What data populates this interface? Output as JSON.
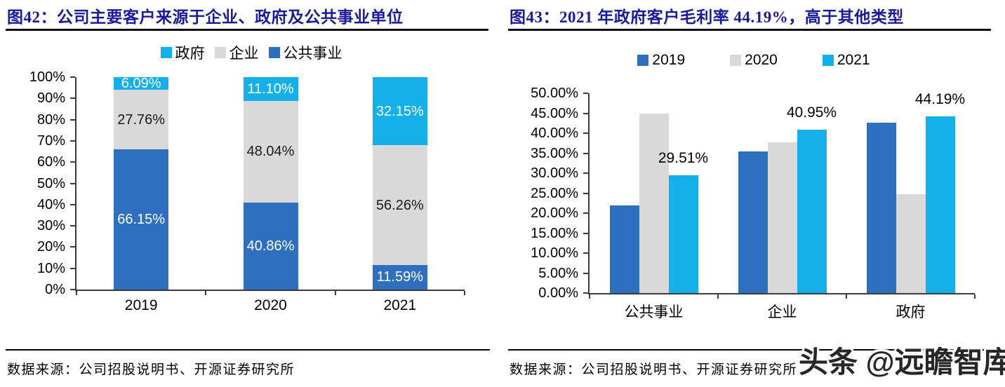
{
  "watermark": {
    "text": "头条 @远瞻智库"
  },
  "panels": [
    {
      "title": "图42：公司主要客户来源于企业、政府及公共事业单位",
      "source": "数据来源：公司招股说明书、开源证券研究所"
    },
    {
      "title": "图43：2021 年政府客户毛利率 44.19%，高于其他类型",
      "source": "数据来源：公司招股说明书、开源证券研究所"
    }
  ],
  "colors": {
    "blue": "#2e6fbf",
    "gray": "#d9d9d9",
    "cyan": "#13b0ea",
    "title_navy": "#1a1a9c"
  },
  "chart_data": [
    {
      "type": "bar",
      "stacked": true,
      "title": "图42：公司主要客户来源于企业、政府及公共事业单位",
      "categories": [
        "2019",
        "2020",
        "2021"
      ],
      "series": [
        {
          "name": "公共事业",
          "color": "#2e6fbf",
          "label_color": "#ffffff",
          "values": [
            66.15,
            40.86,
            11.59
          ],
          "labels": [
            "66.15%",
            "40.86%",
            "11.59%"
          ]
        },
        {
          "name": "企业",
          "color": "#d9d9d9",
          "label_color": "#1a1a1a",
          "values": [
            27.76,
            48.04,
            56.26
          ],
          "labels": [
            "27.76%",
            "48.04%",
            "56.26%"
          ]
        },
        {
          "name": "政府",
          "color": "#13b0ea",
          "label_color": "#ffffff",
          "values": [
            6.09,
            11.1,
            32.15
          ],
          "labels": [
            "6.09%",
            "11.10%",
            "32.15%"
          ]
        }
      ],
      "legend": [
        {
          "label": "政府",
          "color": "#13b0ea"
        },
        {
          "label": "企业",
          "color": "#d9d9d9"
        },
        {
          "label": "公共事业",
          "color": "#2e6fbf"
        }
      ],
      "legend_position": "top",
      "grid": false,
      "ylim": [
        0,
        100
      ],
      "yticks": [
        "0%",
        "10%",
        "20%",
        "30%",
        "40%",
        "50%",
        "60%",
        "70%",
        "80%",
        "90%",
        "100%"
      ]
    },
    {
      "type": "bar",
      "stacked": false,
      "title": "图43：2021 年政府客户毛利率 44.19%，高于其他类型",
      "categories": [
        "公共事业",
        "企业",
        "政府"
      ],
      "series": [
        {
          "name": "2019",
          "color": "#2e6fbf",
          "values": [
            21.9,
            35.4,
            42.6
          ],
          "labels": [
            "",
            "",
            ""
          ]
        },
        {
          "name": "2020",
          "color": "#d9d9d9",
          "values": [
            45.0,
            37.7,
            24.7
          ],
          "labels": [
            "",
            "",
            ""
          ]
        },
        {
          "name": "2021",
          "color": "#13b0ea",
          "values": [
            29.51,
            40.95,
            44.19
          ],
          "labels": [
            "29.51%",
            "40.95%",
            "44.19%"
          ]
        }
      ],
      "legend": [
        {
          "label": "2019",
          "color": "#2e6fbf"
        },
        {
          "label": "2020",
          "color": "#d9d9d9"
        },
        {
          "label": "2021",
          "color": "#13b0ea"
        }
      ],
      "legend_position": "top",
      "grid": false,
      "ylim": [
        0,
        50
      ],
      "yticks": [
        "0.00%",
        "5.00%",
        "10.00%",
        "15.00%",
        "20.00%",
        "25.00%",
        "30.00%",
        "35.00%",
        "40.00%",
        "45.00%",
        "50.00%"
      ]
    }
  ]
}
